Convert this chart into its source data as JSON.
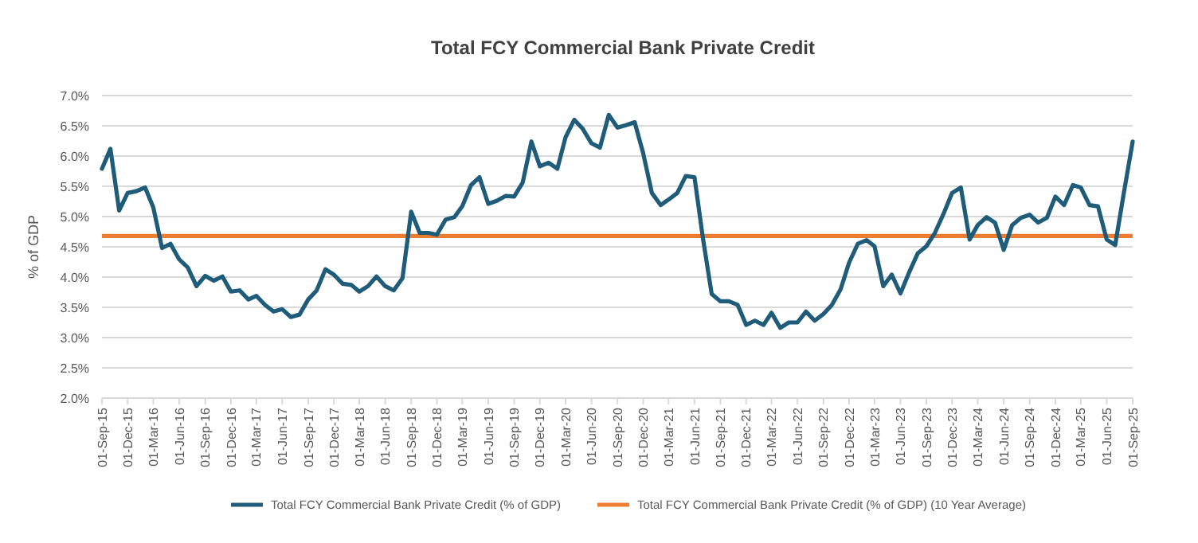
{
  "chart_data": {
    "type": "line",
    "title": "Total FCY Commercial Bank Private Credit",
    "ylabel": "% of GDP",
    "x": [
      "2015-09",
      "2015-10",
      "2015-11",
      "2015-12",
      "2016-01",
      "2016-02",
      "2016-03",
      "2016-04",
      "2016-05",
      "2016-06",
      "2016-07",
      "2016-08",
      "2016-09",
      "2016-10",
      "2016-11",
      "2016-12",
      "2017-01",
      "2017-02",
      "2017-03",
      "2017-04",
      "2017-05",
      "2017-06",
      "2017-07",
      "2017-08",
      "2017-09",
      "2017-10",
      "2017-11",
      "2017-12",
      "2018-01",
      "2018-02",
      "2018-03",
      "2018-04",
      "2018-05",
      "2018-06",
      "2018-07",
      "2018-08",
      "2018-09",
      "2018-10",
      "2018-11",
      "2018-12",
      "2019-01",
      "2019-02",
      "2019-03",
      "2019-04",
      "2019-05",
      "2019-06",
      "2019-07",
      "2019-08",
      "2019-09",
      "2019-10",
      "2019-11",
      "2019-12",
      "2020-01",
      "2020-02",
      "2020-03",
      "2020-04",
      "2020-05",
      "2020-06",
      "2020-07",
      "2020-08",
      "2020-09",
      "2020-10",
      "2020-11",
      "2020-12",
      "2021-01",
      "2021-02",
      "2021-03",
      "2021-04",
      "2021-05",
      "2021-06",
      "2021-07",
      "2021-08",
      "2021-09",
      "2021-10",
      "2021-11",
      "2021-12",
      "2022-01",
      "2022-02",
      "2022-03",
      "2022-04",
      "2022-05",
      "2022-06",
      "2022-07",
      "2022-08",
      "2022-09",
      "2022-10",
      "2022-11",
      "2022-12",
      "2023-01",
      "2023-02",
      "2023-03",
      "2023-04",
      "2023-05",
      "2023-06",
      "2023-07",
      "2023-08",
      "2023-09",
      "2023-10",
      "2023-11",
      "2023-12",
      "2024-01",
      "2024-02",
      "2024-03",
      "2024-04",
      "2024-05",
      "2024-06",
      "2024-07",
      "2024-08",
      "2024-09",
      "2024-10",
      "2024-11",
      "2024-12",
      "2025-01",
      "2025-02",
      "2025-03",
      "2025-04",
      "2025-05",
      "2025-06",
      "2025-07",
      "2025-08",
      "2025-09"
    ],
    "series": [
      {
        "name": "Total FCY Commercial Bank Private Credit (% of GDP)",
        "color": "#1f5c7a",
        "values": [
          5.79,
          6.12,
          5.1,
          5.39,
          5.42,
          5.48,
          5.15,
          4.48,
          4.55,
          4.29,
          4.16,
          3.85,
          4.02,
          3.94,
          4.01,
          3.76,
          3.78,
          3.63,
          3.69,
          3.54,
          3.43,
          3.47,
          3.34,
          3.38,
          3.63,
          3.78,
          4.13,
          4.04,
          3.89,
          3.87,
          3.76,
          3.85,
          4.01,
          3.85,
          3.78,
          3.98,
          5.08,
          4.73,
          4.73,
          4.7,
          4.95,
          4.99,
          5.17,
          5.52,
          5.65,
          5.21,
          5.26,
          5.34,
          5.33,
          5.56,
          6.24,
          5.83,
          5.89,
          5.79,
          6.31,
          6.6,
          6.45,
          6.21,
          6.14,
          6.68,
          6.47,
          6.51,
          6.56,
          6.05,
          5.39,
          5.19,
          5.28,
          5.39,
          5.67,
          5.65,
          4.64,
          3.72,
          3.6,
          3.6,
          3.54,
          3.21,
          3.28,
          3.21,
          3.41,
          3.16,
          3.25,
          3.25,
          3.43,
          3.28,
          3.39,
          3.54,
          3.8,
          4.24,
          4.55,
          4.61,
          4.51,
          3.85,
          4.04,
          3.73,
          4.07,
          4.39,
          4.51,
          4.73,
          5.05,
          5.39,
          5.48,
          4.62,
          4.86,
          4.99,
          4.9,
          4.45,
          4.86,
          4.98,
          5.03,
          4.9,
          4.98,
          5.33,
          5.19,
          5.52,
          5.48,
          5.19,
          5.17,
          4.62,
          4.53,
          5.4,
          6.24
        ]
      }
    ],
    "ref_lines": [
      {
        "axis": "y",
        "value": 4.68,
        "label": "Total FCY Commercial Bank Private Credit (% of GDP) (10 Year Average)",
        "color": "#ed7d31"
      }
    ],
    "xlim": [
      "2015-09",
      "2025-09"
    ],
    "xticks": [
      {
        "value": "2015-09",
        "label": "01-Sep-15"
      },
      {
        "value": "2015-12",
        "label": "01-Dec-15"
      },
      {
        "value": "2016-03",
        "label": "01-Mar-16"
      },
      {
        "value": "2016-06",
        "label": "01-Jun-16"
      },
      {
        "value": "2016-09",
        "label": "01-Sep-16"
      },
      {
        "value": "2016-12",
        "label": "01-Dec-16"
      },
      {
        "value": "2017-03",
        "label": "01-Mar-17"
      },
      {
        "value": "2017-06",
        "label": "01-Jun-17"
      },
      {
        "value": "2017-09",
        "label": "01-Sep-17"
      },
      {
        "value": "2017-12",
        "label": "01-Dec-17"
      },
      {
        "value": "2018-03",
        "label": "01-Mar-18"
      },
      {
        "value": "2018-06",
        "label": "01-Jun-18"
      },
      {
        "value": "2018-09",
        "label": "01-Sep-18"
      },
      {
        "value": "2018-12",
        "label": "01-Dec-18"
      },
      {
        "value": "2019-03",
        "label": "01-Mar-19"
      },
      {
        "value": "2019-06",
        "label": "01-Jun-19"
      },
      {
        "value": "2019-09",
        "label": "01-Sep-19"
      },
      {
        "value": "2019-12",
        "label": "01-Dec-19"
      },
      {
        "value": "2020-03",
        "label": "01-Mar-20"
      },
      {
        "value": "2020-06",
        "label": "01-Jun-20"
      },
      {
        "value": "2020-09",
        "label": "01-Sep-20"
      },
      {
        "value": "2020-12",
        "label": "01-Dec-20"
      },
      {
        "value": "2021-03",
        "label": "01-Mar-21"
      },
      {
        "value": "2021-06",
        "label": "01-Jun-21"
      },
      {
        "value": "2021-09",
        "label": "01-Sep-21"
      },
      {
        "value": "2021-12",
        "label": "01-Dec-21"
      },
      {
        "value": "2022-03",
        "label": "01-Mar-22"
      },
      {
        "value": "2022-06",
        "label": "01-Jun-22"
      },
      {
        "value": "2022-09",
        "label": "01-Sep-22"
      },
      {
        "value": "2022-12",
        "label": "01-Dec-22"
      },
      {
        "value": "2023-03",
        "label": "01-Mar-23"
      },
      {
        "value": "2023-06",
        "label": "01-Jun-23"
      },
      {
        "value": "2023-09",
        "label": "01-Sep-23"
      },
      {
        "value": "2023-12",
        "label": "01-Dec-23"
      },
      {
        "value": "2024-03",
        "label": "01-Mar-24"
      },
      {
        "value": "2024-06",
        "label": "01-Jun-24"
      },
      {
        "value": "2024-09",
        "label": "01-Sep-24"
      },
      {
        "value": "2024-12",
        "label": "01-Dec-24"
      },
      {
        "value": "2025-03",
        "label": "01-Mar-25"
      },
      {
        "value": "2025-06",
        "label": "01-Jun-25"
      },
      {
        "value": "2025-09",
        "label": "01-Sep-25"
      }
    ],
    "ylim": [
      2.0,
      7.0
    ],
    "yticks": [
      {
        "value": 2.0,
        "label": "2.0%"
      },
      {
        "value": 2.5,
        "label": "2.5%"
      },
      {
        "value": 3.0,
        "label": "3.0%"
      },
      {
        "value": 3.5,
        "label": "3.5%"
      },
      {
        "value": 4.0,
        "label": "4.0%"
      },
      {
        "value": 4.5,
        "label": "4.5%"
      },
      {
        "value": 5.0,
        "label": "5.0%"
      },
      {
        "value": 5.5,
        "label": "5.5%"
      },
      {
        "value": 6.0,
        "label": "6.0%"
      },
      {
        "value": 6.5,
        "label": "6.5%"
      },
      {
        "value": 7.0,
        "label": "7.0%"
      }
    ],
    "grid": "y",
    "legend": "bottom",
    "marker": "none",
    "line_style": "solid"
  }
}
